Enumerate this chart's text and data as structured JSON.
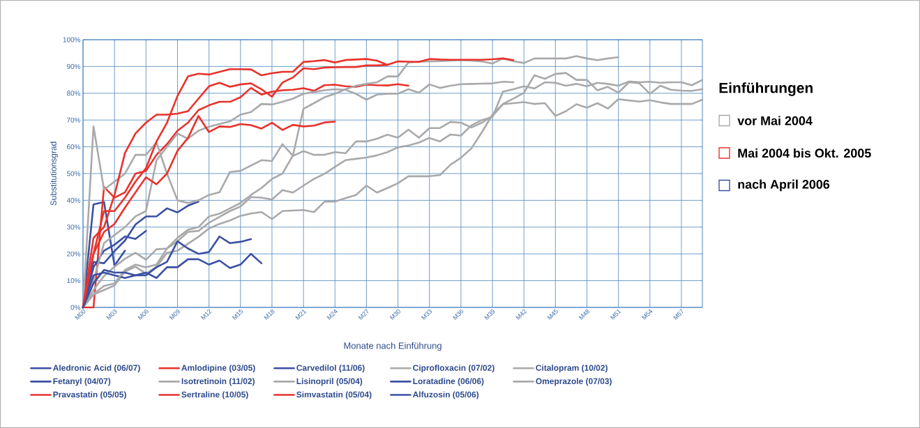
{
  "chart_data": {
    "type": "line",
    "xlabel": "Monate nach Einführung",
    "ylabel": "Substitutionsgrad",
    "legend_title": "Einführungen",
    "annotations": [
      "vor Mai 2004",
      "Mai 2004 bis Okt. 2005",
      "nach April 2006"
    ],
    "categories": [
      "M00",
      null,
      null,
      "M03",
      null,
      null,
      "M06",
      null,
      null,
      "M09",
      null,
      null,
      "M12",
      null,
      null,
      "M15",
      null,
      null,
      "M18",
      null,
      null,
      "M21",
      null,
      null,
      "M24",
      null,
      null,
      "M27",
      null,
      null,
      "M30",
      null,
      null,
      "M33",
      null,
      null,
      "M36",
      null,
      null,
      "M39",
      null,
      null,
      "M42",
      null,
      null,
      "M45",
      null,
      null,
      "M48",
      null,
      null,
      "M51",
      null,
      null,
      "M54",
      null,
      null,
      "M57",
      null,
      null
    ],
    "ylim": [
      0,
      100
    ],
    "yticks": [
      {
        "value": 0,
        "label": "0%"
      },
      {
        "value": 10,
        "label": "10%"
      },
      {
        "value": 20,
        "label": "20%"
      },
      {
        "value": 30,
        "label": "30%"
      },
      {
        "value": 40,
        "label": "40%"
      },
      {
        "value": 50,
        "label": "50%"
      },
      {
        "value": 60,
        "label": "60%"
      },
      {
        "value": 70,
        "label": "70%"
      },
      {
        "value": 80,
        "label": "80%"
      },
      {
        "value": 90,
        "label": "90%"
      },
      {
        "value": 100,
        "label": "100%"
      }
    ],
    "grid": true,
    "legend": "bottom",
    "marker": "none",
    "line_style": "solid",
    "series": [
      {
        "name": "Aledronic Acid (06/07)",
        "color": "#3b50a3",
        "values": [
          0,
          38.5,
          39.4,
          15.6,
          21.2,
          null,
          null,
          null,
          null,
          null,
          null,
          null,
          null,
          null,
          null,
          null,
          null,
          null,
          null,
          null,
          null,
          null,
          null,
          null,
          null,
          null,
          null,
          null,
          null,
          null,
          null,
          null,
          null,
          null,
          null,
          null,
          null,
          null,
          null,
          null,
          null,
          null,
          null,
          null,
          null,
          null,
          null,
          null,
          null,
          null,
          null,
          null,
          null,
          null,
          null,
          null,
          null,
          null,
          null,
          null
        ]
      },
      {
        "name": "Amlodipine (03/05)",
        "color": "#e8322b",
        "values": [
          0,
          0,
          45,
          41,
          43,
          50,
          51,
          57,
          61,
          66,
          69,
          73.7,
          75.5,
          76.8,
          76.8,
          78.5,
          82,
          79.5,
          80.6,
          81.1,
          81.3,
          81.9,
          80.9,
          83,
          83.2,
          82.6,
          82.4,
          83.2,
          83,
          82.9,
          83.4,
          82.8,
          null,
          null,
          null,
          null,
          null,
          null,
          null,
          null,
          null,
          null,
          null,
          null,
          null,
          null,
          null,
          null,
          null,
          null,
          null,
          null,
          null,
          null,
          null,
          null,
          null,
          null,
          null,
          null
        ]
      },
      {
        "name": "Carvedilol (11/06)",
        "color": "#3b50a3",
        "values": [
          0,
          17,
          16.5,
          21,
          25,
          31,
          34,
          34,
          37,
          35.5,
          38,
          39.5,
          null,
          null,
          null,
          null,
          null,
          null,
          null,
          null,
          null,
          null,
          null,
          null,
          null,
          null,
          null,
          null,
          null,
          null,
          null,
          null,
          null,
          null,
          null,
          null,
          null,
          null,
          null,
          null,
          null,
          null,
          null,
          null,
          null,
          null,
          null,
          null,
          null,
          null,
          null,
          null,
          null,
          null,
          null,
          null,
          null,
          null,
          null,
          null
        ]
      },
      {
        "name": "Ciprofloxacin (07/02)",
        "color": "#a9a9ab",
        "values": [
          0,
          6.5,
          11.7,
          15.2,
          18.2,
          20.4,
          17.8,
          21.7,
          22,
          24.7,
          28.2,
          28.6,
          31.6,
          33.8,
          36,
          37.7,
          41.2,
          41,
          40.3,
          43.8,
          42.9,
          45.5,
          48,
          49.9,
          52.5,
          55,
          55.5,
          56,
          56.8,
          58,
          59.8,
          60.5,
          61.6,
          63.3,
          62,
          64.6,
          64.2,
          68,
          70,
          71.1,
          80.6,
          81.5,
          82.6,
          81.8,
          84.1,
          83.9,
          82.8,
          83.5,
          82.6,
          83.9,
          83.5,
          82.8,
          84.4,
          84.1,
          84.3,
          83.9,
          84.1,
          84.1,
          83,
          85
        ]
      },
      {
        "name": "Citalopram (10/02)",
        "color": "#a9a9ab",
        "values": [
          0,
          4.8,
          6.5,
          8.2,
          13.4,
          15.2,
          12.6,
          15.2,
          20.4,
          21.2,
          23.8,
          26.4,
          29.5,
          31.2,
          32.5,
          34.2,
          35.1,
          35.6,
          33,
          36,
          36.2,
          36.4,
          35.6,
          39.5,
          39.5,
          40.8,
          42,
          45.5,
          42.9,
          44.6,
          46.4,
          49,
          49,
          49,
          49.4,
          53.3,
          55.9,
          59.4,
          65.5,
          72,
          76,
          78,
          80.2,
          86.7,
          85.4,
          87.2,
          87.6,
          85,
          85,
          81.1,
          82.4,
          80.2,
          84.1,
          83.7,
          79.8,
          82.8,
          81.3,
          81,
          80.9,
          81.5
        ]
      },
      {
        "name": "Fetanyl (04/07)",
        "color": "#3b50a3",
        "values": [
          0,
          15,
          21.2,
          23.4,
          26.5,
          25.6,
          28.6,
          null,
          null,
          null,
          null,
          null,
          null,
          null,
          null,
          null,
          null,
          null,
          null,
          null,
          null,
          null,
          null,
          null,
          null,
          null,
          null,
          null,
          null,
          null,
          null,
          null,
          null,
          null,
          null,
          null,
          null,
          null,
          null,
          null,
          null,
          null,
          null,
          null,
          null,
          null,
          null,
          null,
          null,
          null,
          null,
          null,
          null,
          null,
          null,
          null,
          null,
          null,
          null,
          null
        ]
      },
      {
        "name": "Isotretinoin (11/02)",
        "color": "#a9a9ab",
        "values": [
          0,
          67.6,
          44,
          47,
          50,
          57,
          57,
          61.6,
          50,
          40,
          39,
          40,
          42,
          43,
          50.6,
          51,
          53,
          55,
          54.7,
          61,
          56.6,
          58.4,
          57,
          57,
          58,
          57.6,
          62,
          62,
          63,
          64.5,
          63.4,
          66.4,
          63.4,
          67,
          67,
          69.3,
          69,
          67.2,
          69,
          71.5,
          75.9,
          76.3,
          76.7,
          76,
          76.3,
          71.5,
          73.3,
          75.9,
          74.6,
          76.3,
          74.3,
          77.8,
          77.3,
          76.9,
          77.4,
          76.6,
          76,
          76,
          76,
          77.6
        ]
      },
      {
        "name": "Lisinopril (05/04)",
        "color": "#a9a9ab",
        "values": [
          0,
          10,
          24,
          27,
          30,
          34,
          36,
          55,
          60,
          65,
          63,
          66,
          67.5,
          68.5,
          69.5,
          72,
          73,
          76,
          75.8,
          76.8,
          78,
          79.8,
          80.5,
          81.1,
          81.5,
          81.3,
          79.8,
          77.6,
          79.5,
          79.8,
          79.8,
          81.5,
          80.2,
          83.3,
          82,
          82.8,
          83.4,
          83.5,
          83.6,
          83.7,
          84.3,
          84.1,
          null,
          null,
          null,
          null,
          null,
          null,
          null,
          null,
          null,
          null,
          null,
          null,
          null,
          null,
          null,
          null,
          null,
          null
        ]
      },
      {
        "name": "Loratadine (06/06)",
        "color": "#3b50a3",
        "values": [
          0,
          12,
          13,
          12,
          11,
          12,
          12,
          15,
          17,
          24.7,
          22,
          20,
          20.7,
          26.5,
          24,
          24.5,
          25.5,
          null,
          null,
          null,
          null,
          null,
          null,
          null,
          null,
          null,
          null,
          null,
          null,
          null,
          null,
          null,
          null,
          null,
          null,
          null,
          null,
          null,
          null,
          null,
          null,
          null,
          null,
          null,
          null,
          null,
          null,
          null,
          null,
          null,
          null,
          null,
          null,
          null,
          null,
          null,
          null,
          null,
          null,
          null
        ]
      },
      {
        "name": "Omeprazole (07/03)",
        "color": "#a9a9ab",
        "values": [
          0,
          5,
          8,
          9,
          14,
          16,
          15,
          16,
          22,
          26,
          29,
          30,
          34,
          35,
          37,
          39,
          42,
          44.6,
          48,
          50,
          56.8,
          74.2,
          76.3,
          78.5,
          79.8,
          81.5,
          82.8,
          83.5,
          84.1,
          86.3,
          86.3,
          91.5,
          91.8,
          91.9,
          92,
          92.2,
          92.4,
          92.2,
          91.9,
          91.1,
          93,
          92,
          91.3,
          93,
          93,
          93,
          93,
          93.9,
          93,
          92.4,
          93,
          93.5,
          null,
          null,
          null,
          null,
          null,
          null,
          null,
          null
        ]
      },
      {
        "name": "Pravastatin (05/05)",
        "color": "#e8322b",
        "values": [
          0,
          26,
          30,
          42,
          57.7,
          65,
          69,
          72,
          72,
          72.4,
          73.3,
          78,
          82.6,
          83.9,
          82.4,
          83.3,
          83.7,
          81.5,
          78.7,
          84,
          85.9,
          89.3,
          89,
          89.6,
          89.7,
          89.8,
          89.8,
          90.4,
          90.4,
          90.6,
          null,
          null,
          null,
          null,
          null,
          null,
          null,
          null,
          null,
          null,
          null,
          null,
          null,
          null,
          null,
          null,
          null,
          null,
          null,
          null,
          null,
          null,
          null,
          null,
          null,
          null,
          null,
          null,
          null,
          null
        ]
      },
      {
        "name": "Sertraline (10/05)",
        "color": "#e8322b",
        "values": [
          0,
          20,
          28.2,
          31.2,
          37.3,
          43,
          48.6,
          46,
          50,
          58.5,
          63.3,
          71.5,
          65.5,
          67.6,
          67.4,
          68.5,
          68.1,
          66.8,
          69,
          66.3,
          68.2,
          67.6,
          67.9,
          69.1,
          69.4,
          null,
          null,
          null,
          null,
          null,
          null,
          null,
          null,
          null,
          null,
          null,
          null,
          null,
          null,
          null,
          null,
          null,
          null,
          null,
          null,
          null,
          null,
          null,
          null,
          null,
          null,
          null,
          null,
          null,
          null,
          null,
          null,
          null,
          null,
          null
        ]
      },
      {
        "name": "Simvastatin (05/04)",
        "color": "#e8322b",
        "values": [
          0,
          20,
          36,
          36,
          41,
          47,
          52,
          62,
          69,
          79,
          86.3,
          87.3,
          87,
          88,
          89,
          89,
          88.9,
          86.7,
          87.5,
          88,
          88,
          91.7,
          92,
          92.4,
          91.5,
          92.4,
          92.6,
          92.8,
          92.2,
          90.6,
          91.9,
          91.8,
          91.7,
          92.8,
          92.6,
          92.5,
          92.5,
          92.5,
          92.5,
          92.7,
          93,
          92.4,
          null,
          null,
          null,
          null,
          null,
          null,
          null,
          null,
          null,
          null,
          null,
          null,
          null,
          null,
          null,
          null,
          null,
          null
        ]
      },
      {
        "name": "Alfuzosin (05/06)",
        "color": "#3b50a3",
        "values": [
          0,
          9,
          14,
          13,
          13,
          12,
          13,
          11,
          15,
          15,
          18,
          18,
          16,
          17.5,
          14.7,
          16,
          20,
          16.5,
          null,
          null,
          null,
          null,
          null,
          null,
          null,
          null,
          null,
          null,
          null,
          null,
          null,
          null,
          null,
          null,
          null,
          null,
          null,
          null,
          null,
          null,
          null,
          null,
          null,
          null,
          null,
          null,
          null,
          null,
          null,
          null,
          null,
          null,
          null,
          null,
          null,
          null,
          null,
          null,
          null,
          null
        ]
      }
    ]
  }
}
